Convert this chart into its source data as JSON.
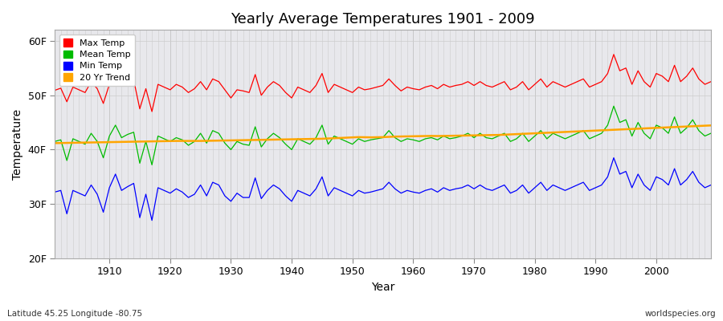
{
  "title": "Yearly Average Temperatures 1901 - 2009",
  "xlabel": "Year",
  "ylabel": "Temperature",
  "xlim": [
    1901,
    2009
  ],
  "ylim": [
    20,
    62
  ],
  "yticks": [
    20,
    30,
    40,
    50,
    60
  ],
  "ytick_labels": [
    "20F",
    "30F",
    "40F",
    "50F",
    "60F"
  ],
  "xticks": [
    1910,
    1920,
    1930,
    1940,
    1950,
    1960,
    1970,
    1980,
    1990,
    2000
  ],
  "background_color": "#ffffff",
  "plot_bg_color": "#e8e8ec",
  "grid_color": "#ffffff",
  "legend_labels": [
    "Max Temp",
    "Mean Temp",
    "Min Temp",
    "20 Yr Trend"
  ],
  "legend_colors": [
    "#ff0000",
    "#00bb00",
    "#0000ff",
    "#ffa500"
  ],
  "footnote_left": "Latitude 45.25 Longitude -80.75",
  "footnote_right": "worldspecies.org",
  "max_temp": [
    50.9,
    51.3,
    48.8,
    51.5,
    51.0,
    50.5,
    52.5,
    51.2,
    48.5,
    52.0,
    53.5,
    51.8,
    52.2,
    52.8,
    47.5,
    51.2,
    47.0,
    52.0,
    51.5,
    51.0,
    52.0,
    51.5,
    50.5,
    51.2,
    52.5,
    51.0,
    53.0,
    52.5,
    51.0,
    49.5,
    51.0,
    50.8,
    50.5,
    53.8,
    50.0,
    51.5,
    52.5,
    51.8,
    50.5,
    49.5,
    51.5,
    51.0,
    50.5,
    51.8,
    54.0,
    50.5,
    52.0,
    51.5,
    51.0,
    50.5,
    51.5,
    51.0,
    51.2,
    51.5,
    51.8,
    53.0,
    51.8,
    50.8,
    51.5,
    51.2,
    51.0,
    51.5,
    51.8,
    51.2,
    52.0,
    51.5,
    51.8,
    52.0,
    52.5,
    51.8,
    52.5,
    51.8,
    51.5,
    52.0,
    52.5,
    51.0,
    51.5,
    52.5,
    51.0,
    52.0,
    53.0,
    51.5,
    52.5,
    52.0,
    51.5,
    52.0,
    52.5,
    53.0,
    51.5,
    52.0,
    52.5,
    54.0,
    57.5,
    54.5,
    55.0,
    52.0,
    54.5,
    52.5,
    51.5,
    54.0,
    53.5,
    52.5,
    55.5,
    52.5,
    53.5,
    55.0,
    53.0,
    52.0,
    52.5
  ],
  "mean_temp": [
    41.5,
    41.8,
    38.0,
    42.0,
    41.5,
    41.0,
    43.0,
    41.5,
    38.5,
    42.5,
    44.5,
    42.2,
    42.8,
    43.2,
    37.5,
    41.5,
    37.2,
    42.5,
    42.0,
    41.5,
    42.2,
    41.8,
    40.8,
    41.5,
    43.0,
    41.2,
    43.5,
    43.0,
    41.2,
    40.0,
    41.5,
    41.0,
    40.8,
    44.2,
    40.5,
    42.0,
    43.0,
    42.2,
    41.0,
    40.0,
    42.0,
    41.5,
    41.0,
    42.2,
    44.5,
    41.0,
    42.5,
    42.0,
    41.5,
    41.0,
    42.0,
    41.5,
    41.8,
    42.0,
    42.2,
    43.5,
    42.2,
    41.5,
    42.0,
    41.8,
    41.5,
    42.0,
    42.2,
    41.8,
    42.5,
    42.0,
    42.2,
    42.5,
    43.0,
    42.2,
    43.0,
    42.2,
    42.0,
    42.5,
    43.0,
    41.5,
    42.0,
    43.0,
    41.5,
    42.5,
    43.5,
    42.0,
    43.0,
    42.5,
    42.0,
    42.5,
    43.0,
    43.5,
    42.0,
    42.5,
    43.0,
    44.5,
    48.0,
    45.0,
    45.5,
    42.5,
    45.0,
    43.0,
    42.0,
    44.5,
    44.0,
    43.0,
    46.0,
    43.0,
    44.0,
    45.5,
    43.5,
    42.5,
    43.0
  ],
  "min_temp": [
    32.2,
    32.5,
    28.2,
    32.5,
    32.0,
    31.5,
    33.5,
    31.8,
    28.5,
    33.0,
    35.5,
    32.5,
    33.2,
    33.8,
    27.5,
    31.8,
    27.0,
    33.0,
    32.5,
    32.0,
    32.8,
    32.2,
    31.2,
    31.8,
    33.5,
    31.5,
    34.0,
    33.5,
    31.5,
    30.5,
    32.0,
    31.2,
    31.2,
    34.8,
    31.0,
    32.5,
    33.5,
    32.8,
    31.5,
    30.5,
    32.5,
    32.0,
    31.5,
    32.8,
    35.0,
    31.5,
    33.0,
    32.5,
    32.0,
    31.5,
    32.5,
    32.0,
    32.2,
    32.5,
    32.8,
    34.0,
    32.8,
    32.0,
    32.5,
    32.2,
    32.0,
    32.5,
    32.8,
    32.2,
    33.0,
    32.5,
    32.8,
    33.0,
    33.5,
    32.8,
    33.5,
    32.8,
    32.5,
    33.0,
    33.5,
    32.0,
    32.5,
    33.5,
    32.0,
    33.0,
    34.0,
    32.5,
    33.5,
    33.0,
    32.5,
    33.0,
    33.5,
    34.0,
    32.5,
    33.0,
    33.5,
    35.0,
    38.5,
    35.5,
    36.0,
    33.0,
    35.5,
    33.5,
    32.5,
    35.0,
    34.5,
    33.5,
    36.5,
    33.5,
    34.5,
    36.0,
    34.0,
    33.0,
    33.5
  ],
  "trend_temp": [
    41.2,
    41.22,
    41.24,
    41.26,
    41.28,
    41.3,
    41.32,
    41.34,
    41.36,
    41.38,
    41.4,
    41.42,
    41.44,
    41.46,
    41.48,
    41.5,
    41.52,
    41.54,
    41.56,
    41.58,
    41.6,
    41.6,
    41.6,
    41.6,
    41.6,
    41.62,
    41.64,
    41.66,
    41.68,
    41.7,
    41.72,
    41.74,
    41.76,
    41.78,
    41.8,
    41.82,
    41.84,
    41.86,
    41.88,
    41.9,
    41.92,
    41.94,
    41.96,
    41.98,
    42.0,
    42.05,
    42.1,
    42.15,
    42.2,
    42.25,
    42.3,
    42.28,
    42.26,
    42.28,
    42.3,
    42.35,
    42.4,
    42.42,
    42.44,
    42.46,
    42.48,
    42.5,
    42.52,
    42.5,
    42.52,
    42.54,
    42.56,
    42.58,
    42.6,
    42.62,
    42.64,
    42.66,
    42.68,
    42.7,
    42.75,
    42.8,
    42.85,
    42.9,
    42.95,
    43.0,
    43.05,
    43.1,
    43.15,
    43.2,
    43.25,
    43.3,
    43.35,
    43.4,
    43.45,
    43.5,
    43.55,
    43.6,
    43.65,
    43.7,
    43.75,
    43.8,
    43.85,
    43.9,
    43.95,
    44.0,
    44.05,
    44.1,
    44.15,
    44.2,
    44.25,
    44.3,
    44.35,
    44.4,
    44.45
  ]
}
